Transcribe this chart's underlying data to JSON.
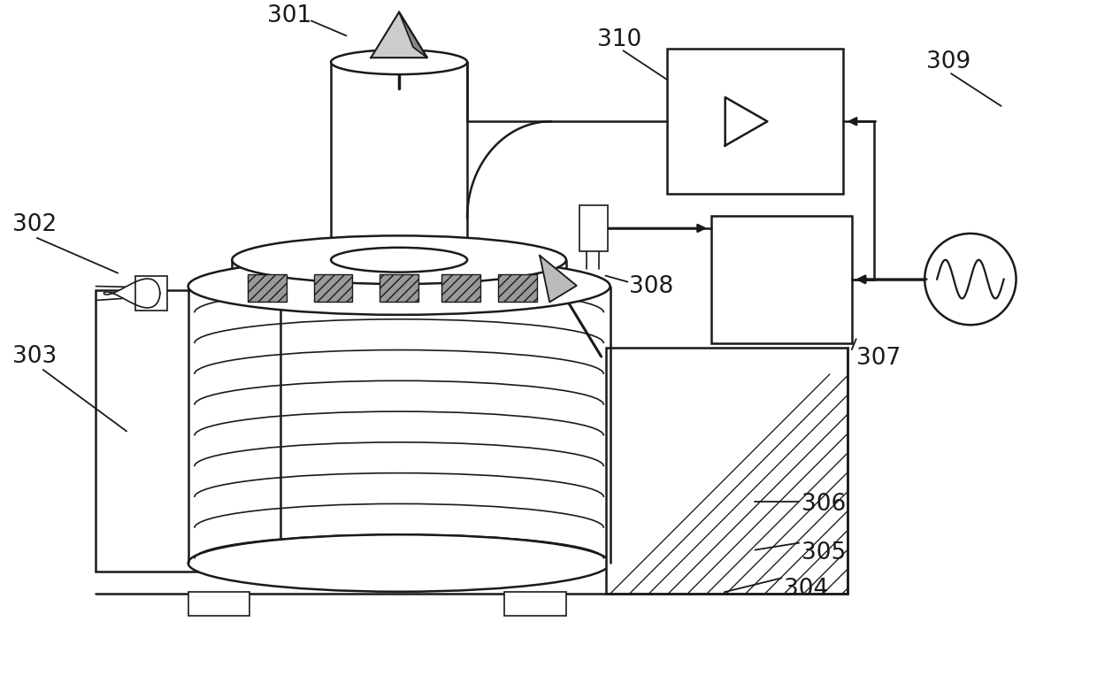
{
  "bg_color": "#ffffff",
  "line_color": "#1a1a1a",
  "label_color": "#1a1a1a",
  "label_fontsize": 19,
  "fig_width": 12.4,
  "fig_height": 7.72
}
